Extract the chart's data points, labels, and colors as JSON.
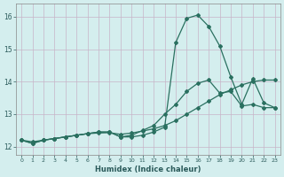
{
  "xlabel": "Humidex (Indice chaleur)",
  "bg_color": "#d4eeee",
  "grid_color": "#c8b4c8",
  "line_color": "#2a7060",
  "xlim": [
    -0.5,
    23.5
  ],
  "ylim": [
    11.75,
    16.4
  ],
  "xticks": [
    0,
    1,
    2,
    3,
    4,
    5,
    6,
    7,
    8,
    9,
    10,
    11,
    12,
    13,
    14,
    15,
    16,
    17,
    18,
    19,
    20,
    21,
    22,
    23
  ],
  "yticks": [
    12,
    13,
    14,
    15,
    16
  ],
  "line1_x": [
    0,
    1,
    2,
    3,
    4,
    5,
    6,
    7,
    8,
    9,
    10,
    11,
    12,
    13,
    14,
    15,
    16,
    17,
    18,
    19,
    20,
    21,
    22,
    23
  ],
  "line1_y": [
    12.2,
    12.1,
    12.2,
    12.25,
    12.3,
    12.35,
    12.4,
    12.45,
    12.45,
    12.3,
    12.3,
    12.35,
    12.45,
    12.6,
    15.2,
    15.95,
    16.05,
    15.7,
    15.1,
    14.15,
    13.3,
    14.1,
    13.35,
    13.2
  ],
  "line2_x": [
    0,
    1,
    2,
    3,
    4,
    5,
    6,
    7,
    8,
    9,
    10,
    11,
    12,
    13,
    14,
    15,
    16,
    17,
    18,
    19,
    20,
    21,
    22,
    23
  ],
  "line2_y": [
    12.2,
    12.1,
    12.2,
    12.25,
    12.3,
    12.35,
    12.4,
    12.45,
    12.45,
    12.3,
    12.35,
    12.5,
    12.65,
    13.0,
    13.3,
    13.7,
    13.95,
    14.05,
    13.65,
    13.7,
    13.25,
    13.3,
    13.2,
    13.2
  ],
  "line3_x": [
    0,
    1,
    2,
    3,
    4,
    5,
    6,
    7,
    8,
    9,
    10,
    11,
    12,
    13,
    14,
    15,
    16,
    17,
    18,
    19,
    20,
    21,
    22,
    23
  ],
  "line3_y": [
    12.2,
    12.15,
    12.2,
    12.25,
    12.3,
    12.35,
    12.4,
    12.42,
    12.43,
    12.38,
    12.42,
    12.48,
    12.55,
    12.65,
    12.8,
    13.0,
    13.2,
    13.4,
    13.6,
    13.75,
    13.9,
    14.0,
    14.05,
    14.05
  ]
}
